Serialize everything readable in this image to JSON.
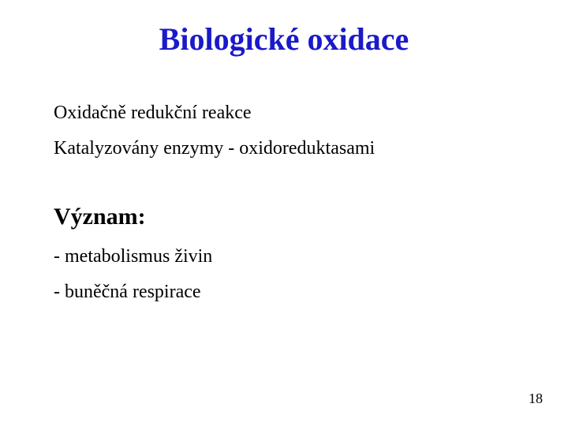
{
  "title": {
    "text": "Biologické oxidace",
    "color": "#1a1aca",
    "fontsize": 40
  },
  "body": {
    "fontsize": 24,
    "color": "#000000",
    "subhead_fontsize": 30,
    "lines": [
      "Oxidačně  redukční reakce",
      "Katalyzovány enzymy - oxidoreduktasami"
    ],
    "subhead": "Význam:",
    "bullets": [
      "- metabolismus živin",
      "- buněčná respirace"
    ]
  },
  "page_number": {
    "text": "18",
    "fontsize": 18,
    "color": "#000000"
  },
  "background_color": "#ffffff"
}
